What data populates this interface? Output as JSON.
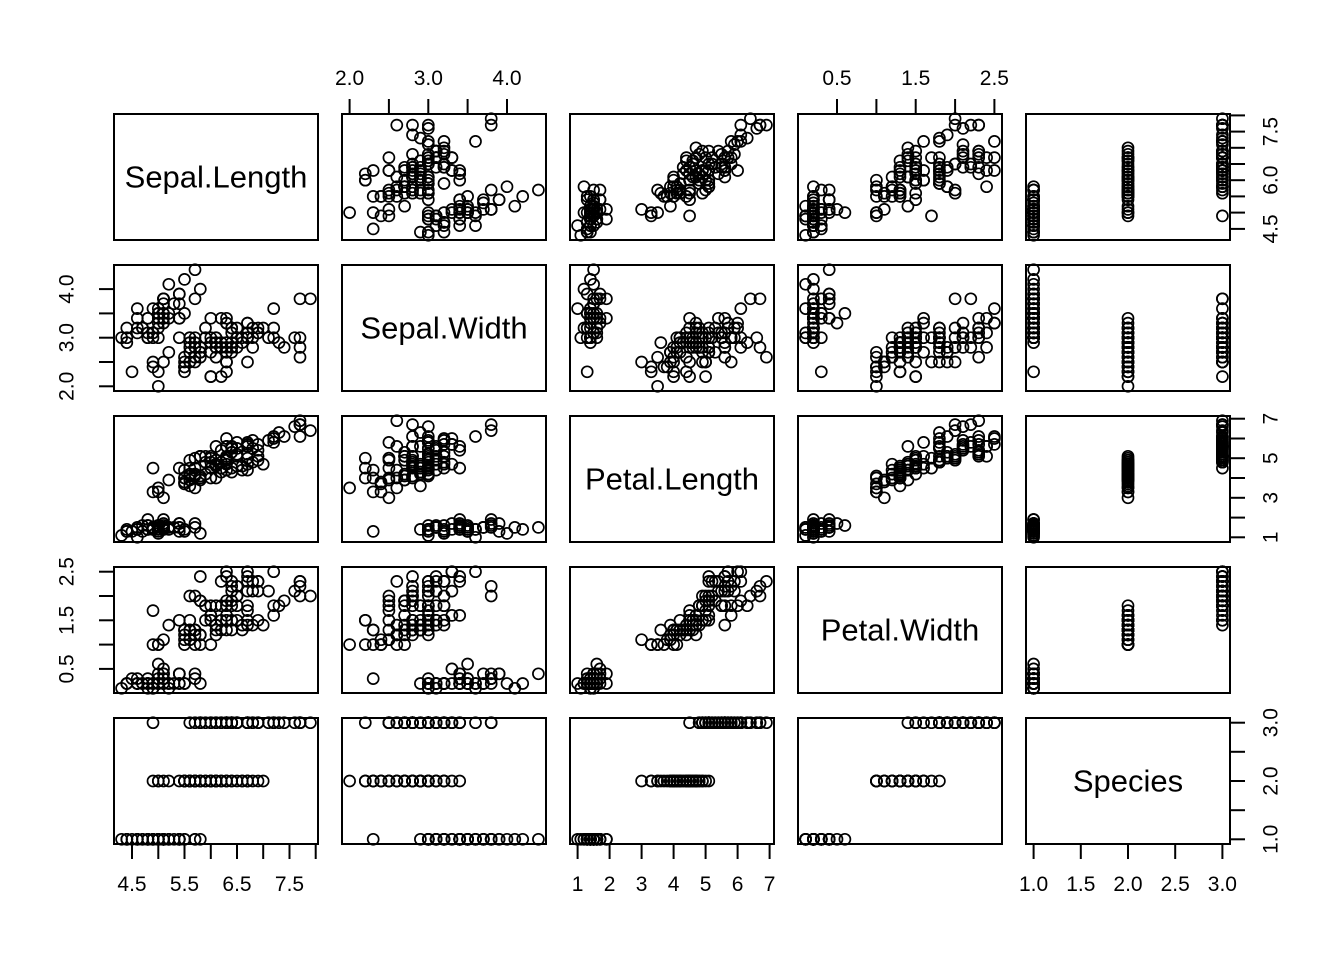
{
  "figure": {
    "background": "#ffffff",
    "foreground": "#000000"
  },
  "chart_data": {
    "type": "scatter",
    "subtype": "pairs_matrix",
    "title": "",
    "grid": false,
    "marker": {
      "shape": "open-circle",
      "color": "#000000",
      "radius": 5.5,
      "stroke_width": 1.7
    },
    "variables": [
      "Sepal.Length",
      "Sepal.Width",
      "Petal.Length",
      "Petal.Width",
      "Species"
    ],
    "n_points": 150,
    "axis_ranges": {
      "Sepal.Length": [
        4.156,
        8.044
      ],
      "Sepal.Width": [
        1.904,
        4.496
      ],
      "Petal.Length": [
        0.764,
        7.136
      ],
      "Petal.Width": [
        0.004,
        2.596
      ],
      "Species": [
        0.92,
        3.08
      ]
    },
    "ticks": {
      "Sepal.Length": [
        4.5,
        5.0,
        5.5,
        6.0,
        6.5,
        7.0,
        7.5,
        8.0
      ],
      "Sepal.Width": [
        2.0,
        2.5,
        3.0,
        3.5,
        4.0
      ],
      "Petal.Length": [
        1,
        2,
        3,
        4,
        5,
        6,
        7
      ],
      "Petal.Width": [
        0.5,
        1.0,
        1.5,
        2.0,
        2.5
      ],
      "Species": [
        1.0,
        1.5,
        2.0,
        2.5,
        3.0
      ]
    },
    "axes": [
      {
        "side": "top",
        "col": 1,
        "var": 1,
        "labels": [
          "2.0",
          "3.0",
          "4.0"
        ],
        "label_values": [
          2.0,
          3.0,
          4.0
        ]
      },
      {
        "side": "top",
        "col": 3,
        "var": 3,
        "labels": [
          "0.5",
          "1.5",
          "2.5"
        ],
        "label_values": [
          0.5,
          1.5,
          2.5
        ]
      },
      {
        "side": "bottom",
        "col": 0,
        "var": 0,
        "labels": [
          "4.5",
          "5.5",
          "6.5",
          "7.5"
        ],
        "label_values": [
          4.5,
          5.5,
          6.5,
          7.5
        ]
      },
      {
        "side": "bottom",
        "col": 2,
        "var": 2,
        "labels": [
          "1",
          "2",
          "3",
          "4",
          "5",
          "6",
          "7"
        ],
        "label_values": [
          1,
          2,
          3,
          4,
          5,
          6,
          7
        ]
      },
      {
        "side": "bottom",
        "col": 4,
        "var": 4,
        "labels": [
          "1.0",
          "1.5",
          "2.0",
          "2.5",
          "3.0"
        ],
        "label_values": [
          1.0,
          1.5,
          2.0,
          2.5,
          3.0
        ]
      },
      {
        "side": "left",
        "row": 1,
        "var": 1,
        "labels": [
          "2.0",
          "3.0",
          "4.0"
        ],
        "label_values": [
          2.0,
          3.0,
          4.0
        ]
      },
      {
        "side": "left",
        "row": 3,
        "var": 3,
        "labels": [
          "0.5",
          "1.5",
          "2.5"
        ],
        "label_values": [
          0.5,
          1.5,
          2.5
        ]
      },
      {
        "side": "right",
        "row": 0,
        "var": 0,
        "labels": [
          "4.5",
          "6.0",
          "7.5"
        ],
        "label_values": [
          4.5,
          6.0,
          7.5
        ]
      },
      {
        "side": "right",
        "row": 2,
        "var": 2,
        "labels": [
          "1",
          "3",
          "5",
          "7"
        ],
        "label_values": [
          1,
          3,
          5,
          7
        ]
      },
      {
        "side": "right",
        "row": 4,
        "var": 4,
        "labels": [
          "1.0",
          "2.0",
          "3.0"
        ],
        "label_values": [
          1.0,
          2.0,
          3.0
        ]
      }
    ],
    "data": {
      "Sepal.Length": [
        5.1,
        4.9,
        4.7,
        4.6,
        5.0,
        5.4,
        4.6,
        5.0,
        4.4,
        4.9,
        5.4,
        4.8,
        4.8,
        4.3,
        5.8,
        5.7,
        5.4,
        5.1,
        5.7,
        5.1,
        5.4,
        5.1,
        4.6,
        5.1,
        4.8,
        5.0,
        5.0,
        5.2,
        5.2,
        4.7,
        4.8,
        5.4,
        5.2,
        5.5,
        4.9,
        5.0,
        5.5,
        4.9,
        4.4,
        5.1,
        5.0,
        4.5,
        4.4,
        5.0,
        5.1,
        4.8,
        5.1,
        4.6,
        5.3,
        5.0,
        7.0,
        6.4,
        6.9,
        5.5,
        6.5,
        5.7,
        6.3,
        4.9,
        6.6,
        5.2,
        5.0,
        5.9,
        6.0,
        6.1,
        5.6,
        6.7,
        5.6,
        5.8,
        6.2,
        5.6,
        5.9,
        6.1,
        6.3,
        6.1,
        6.4,
        6.6,
        6.8,
        6.7,
        6.0,
        5.7,
        5.5,
        5.5,
        5.8,
        6.0,
        5.4,
        6.0,
        6.7,
        6.3,
        5.6,
        5.5,
        5.5,
        6.1,
        5.8,
        5.0,
        5.6,
        5.7,
        5.7,
        6.2,
        5.1,
        5.7,
        6.3,
        5.8,
        7.1,
        6.3,
        6.5,
        7.6,
        4.9,
        7.3,
        6.7,
        7.2,
        6.5,
        6.4,
        6.8,
        5.7,
        5.8,
        6.4,
        6.5,
        7.7,
        7.7,
        6.0,
        6.9,
        5.6,
        7.7,
        6.3,
        6.7,
        7.2,
        6.2,
        6.1,
        6.4,
        7.2,
        7.4,
        7.9,
        6.4,
        6.3,
        6.1,
        7.7,
        6.3,
        6.4,
        6.0,
        6.9,
        6.7,
        6.9,
        5.8,
        6.8,
        6.7,
        6.7,
        6.3,
        6.5,
        6.2,
        5.9
      ],
      "Sepal.Width": [
        3.5,
        3.0,
        3.2,
        3.1,
        3.6,
        3.9,
        3.4,
        3.4,
        2.9,
        3.1,
        3.7,
        3.4,
        3.0,
        3.0,
        4.0,
        4.4,
        3.9,
        3.5,
        3.8,
        3.8,
        3.4,
        3.7,
        3.6,
        3.3,
        3.4,
        3.0,
        3.4,
        3.5,
        3.4,
        3.2,
        3.1,
        3.4,
        4.1,
        4.2,
        3.1,
        3.2,
        3.5,
        3.6,
        3.0,
        3.4,
        3.5,
        2.3,
        3.2,
        3.5,
        3.8,
        3.0,
        3.8,
        3.2,
        3.7,
        3.3,
        3.2,
        3.2,
        3.1,
        2.3,
        2.8,
        2.8,
        3.3,
        2.4,
        2.9,
        2.7,
        2.0,
        3.0,
        2.2,
        2.9,
        2.9,
        3.1,
        3.0,
        2.7,
        2.2,
        2.5,
        3.2,
        2.8,
        2.5,
        2.8,
        2.9,
        3.0,
        2.8,
        3.0,
        2.9,
        2.6,
        2.4,
        2.4,
        2.7,
        2.7,
        3.0,
        3.4,
        3.1,
        2.3,
        3.0,
        2.5,
        2.6,
        3.0,
        2.6,
        2.3,
        2.7,
        3.0,
        2.9,
        2.9,
        2.5,
        2.8,
        3.3,
        2.7,
        3.0,
        2.9,
        3.0,
        3.0,
        2.5,
        2.9,
        2.5,
        3.6,
        3.2,
        2.7,
        3.0,
        2.5,
        2.8,
        3.2,
        3.0,
        3.8,
        2.6,
        2.2,
        3.2,
        2.8,
        2.8,
        2.7,
        3.3,
        3.2,
        2.8,
        3.0,
        2.8,
        3.0,
        2.8,
        3.8,
        2.8,
        2.8,
        2.6,
        3.0,
        3.4,
        3.1,
        3.0,
        3.1,
        3.1,
        3.1,
        2.7,
        3.2,
        3.3,
        3.0,
        2.5,
        3.0,
        3.4,
        3.0
      ],
      "Petal.Length": [
        1.4,
        1.4,
        1.3,
        1.5,
        1.4,
        1.7,
        1.4,
        1.5,
        1.4,
        1.5,
        1.5,
        1.6,
        1.4,
        1.1,
        1.2,
        1.5,
        1.3,
        1.4,
        1.7,
        1.5,
        1.7,
        1.5,
        1.0,
        1.7,
        1.9,
        1.6,
        1.6,
        1.5,
        1.4,
        1.6,
        1.6,
        1.5,
        1.5,
        1.4,
        1.5,
        1.2,
        1.3,
        1.4,
        1.3,
        1.5,
        1.3,
        1.3,
        1.3,
        1.6,
        1.9,
        1.4,
        1.6,
        1.4,
        1.5,
        1.4,
        4.7,
        4.5,
        4.9,
        4.0,
        4.6,
        4.5,
        4.7,
        3.3,
        4.6,
        3.9,
        3.5,
        4.2,
        4.0,
        4.7,
        3.6,
        4.4,
        4.5,
        4.1,
        4.5,
        3.9,
        4.8,
        4.0,
        4.9,
        4.7,
        4.3,
        4.4,
        4.8,
        5.0,
        4.5,
        3.5,
        3.8,
        3.7,
        3.9,
        5.1,
        4.5,
        4.5,
        4.7,
        4.4,
        4.1,
        4.0,
        4.4,
        4.6,
        4.0,
        3.3,
        4.2,
        4.2,
        4.2,
        4.3,
        3.0,
        4.1,
        6.0,
        5.1,
        5.9,
        5.6,
        5.8,
        6.6,
        4.5,
        6.3,
        5.8,
        6.1,
        5.1,
        5.3,
        5.5,
        5.0,
        5.1,
        5.3,
        5.5,
        6.7,
        6.9,
        5.0,
        5.7,
        4.9,
        6.7,
        4.9,
        5.7,
        6.0,
        4.8,
        4.9,
        5.6,
        5.8,
        6.1,
        6.4,
        5.6,
        5.1,
        5.6,
        6.1,
        5.6,
        5.5,
        4.8,
        5.4,
        5.6,
        5.1,
        5.1,
        5.9,
        5.7,
        5.2,
        5.0,
        5.2,
        5.4,
        5.1
      ],
      "Petal.Width": [
        0.2,
        0.2,
        0.2,
        0.2,
        0.2,
        0.4,
        0.3,
        0.2,
        0.2,
        0.1,
        0.2,
        0.2,
        0.1,
        0.1,
        0.2,
        0.4,
        0.4,
        0.3,
        0.3,
        0.3,
        0.2,
        0.4,
        0.2,
        0.5,
        0.2,
        0.2,
        0.4,
        0.2,
        0.2,
        0.2,
        0.2,
        0.4,
        0.1,
        0.2,
        0.2,
        0.2,
        0.2,
        0.1,
        0.2,
        0.2,
        0.3,
        0.3,
        0.2,
        0.6,
        0.4,
        0.3,
        0.2,
        0.2,
        0.2,
        0.2,
        1.4,
        1.5,
        1.5,
        1.3,
        1.5,
        1.3,
        1.6,
        1.0,
        1.3,
        1.4,
        1.0,
        1.5,
        1.0,
        1.4,
        1.3,
        1.4,
        1.5,
        1.0,
        1.5,
        1.1,
        1.8,
        1.3,
        1.5,
        1.2,
        1.3,
        1.4,
        1.4,
        1.7,
        1.5,
        1.0,
        1.1,
        1.0,
        1.2,
        1.6,
        1.5,
        1.6,
        1.5,
        1.3,
        1.3,
        1.3,
        1.2,
        1.4,
        1.2,
        1.0,
        1.3,
        1.2,
        1.3,
        1.3,
        1.1,
        1.3,
        2.5,
        1.9,
        2.1,
        1.8,
        2.2,
        2.1,
        1.7,
        1.8,
        1.8,
        2.5,
        2.0,
        1.9,
        2.1,
        2.0,
        2.4,
        2.3,
        1.8,
        2.2,
        2.3,
        1.5,
        2.3,
        2.0,
        2.0,
        1.8,
        2.1,
        1.8,
        1.8,
        1.8,
        2.1,
        1.6,
        1.9,
        2.0,
        2.2,
        1.5,
        1.4,
        2.3,
        2.4,
        1.8,
        1.8,
        2.1,
        2.4,
        2.3,
        1.9,
        2.3,
        2.5,
        2.3,
        1.9,
        2.0,
        2.3,
        1.8
      ],
      "Species": [
        1,
        1,
        1,
        1,
        1,
        1,
        1,
        1,
        1,
        1,
        1,
        1,
        1,
        1,
        1,
        1,
        1,
        1,
        1,
        1,
        1,
        1,
        1,
        1,
        1,
        1,
        1,
        1,
        1,
        1,
        1,
        1,
        1,
        1,
        1,
        1,
        1,
        1,
        1,
        1,
        1,
        1,
        1,
        1,
        1,
        1,
        1,
        1,
        1,
        1,
        2,
        2,
        2,
        2,
        2,
        2,
        2,
        2,
        2,
        2,
        2,
        2,
        2,
        2,
        2,
        2,
        2,
        2,
        2,
        2,
        2,
        2,
        2,
        2,
        2,
        2,
        2,
        2,
        2,
        2,
        2,
        2,
        2,
        2,
        2,
        2,
        2,
        2,
        2,
        2,
        2,
        2,
        2,
        2,
        2,
        2,
        2,
        2,
        2,
        2,
        3,
        3,
        3,
        3,
        3,
        3,
        3,
        3,
        3,
        3,
        3,
        3,
        3,
        3,
        3,
        3,
        3,
        3,
        3,
        3,
        3,
        3,
        3,
        3,
        3,
        3,
        3,
        3,
        3,
        3,
        3,
        3,
        3,
        3,
        3,
        3,
        3,
        3,
        3,
        3,
        3,
        3,
        3,
        3,
        3,
        3,
        3,
        3,
        3,
        3
      ]
    }
  }
}
